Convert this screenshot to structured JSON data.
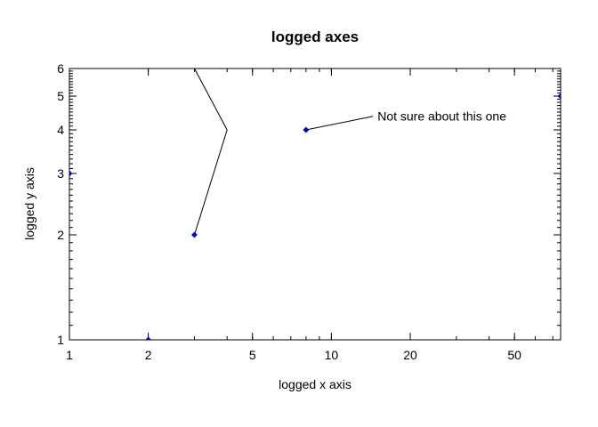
{
  "chart_data": {
    "type": "line",
    "title": "logged axes",
    "xlabel": "logged x axis",
    "ylabel": "logged y axis",
    "xscale": "log",
    "yscale": "log",
    "xlim": [
      1,
      75
    ],
    "ylim": [
      1,
      6
    ],
    "grid": false,
    "x_ticks": [
      1,
      2,
      5,
      10,
      20,
      50
    ],
    "x_tick_labels": [
      "1",
      "2",
      "5",
      "10",
      "20",
      "50"
    ],
    "y_ticks": [
      1,
      2,
      3,
      4,
      5,
      6
    ],
    "y_tick_labels": [
      "1",
      "2",
      "3",
      "4",
      "5",
      "6"
    ],
    "line_series": {
      "x": [
        3,
        4,
        3
      ],
      "y": [
        2,
        4,
        6
      ],
      "color": "#000000"
    },
    "points": {
      "x": [
        1,
        2,
        3,
        8,
        75
      ],
      "y": [
        3,
        1,
        2,
        4,
        5
      ],
      "color": "#0000cc"
    },
    "annotation": {
      "text": "Not sure about this one",
      "x": 8,
      "y": 4,
      "text_x": 15,
      "text_y": 4.3
    }
  }
}
